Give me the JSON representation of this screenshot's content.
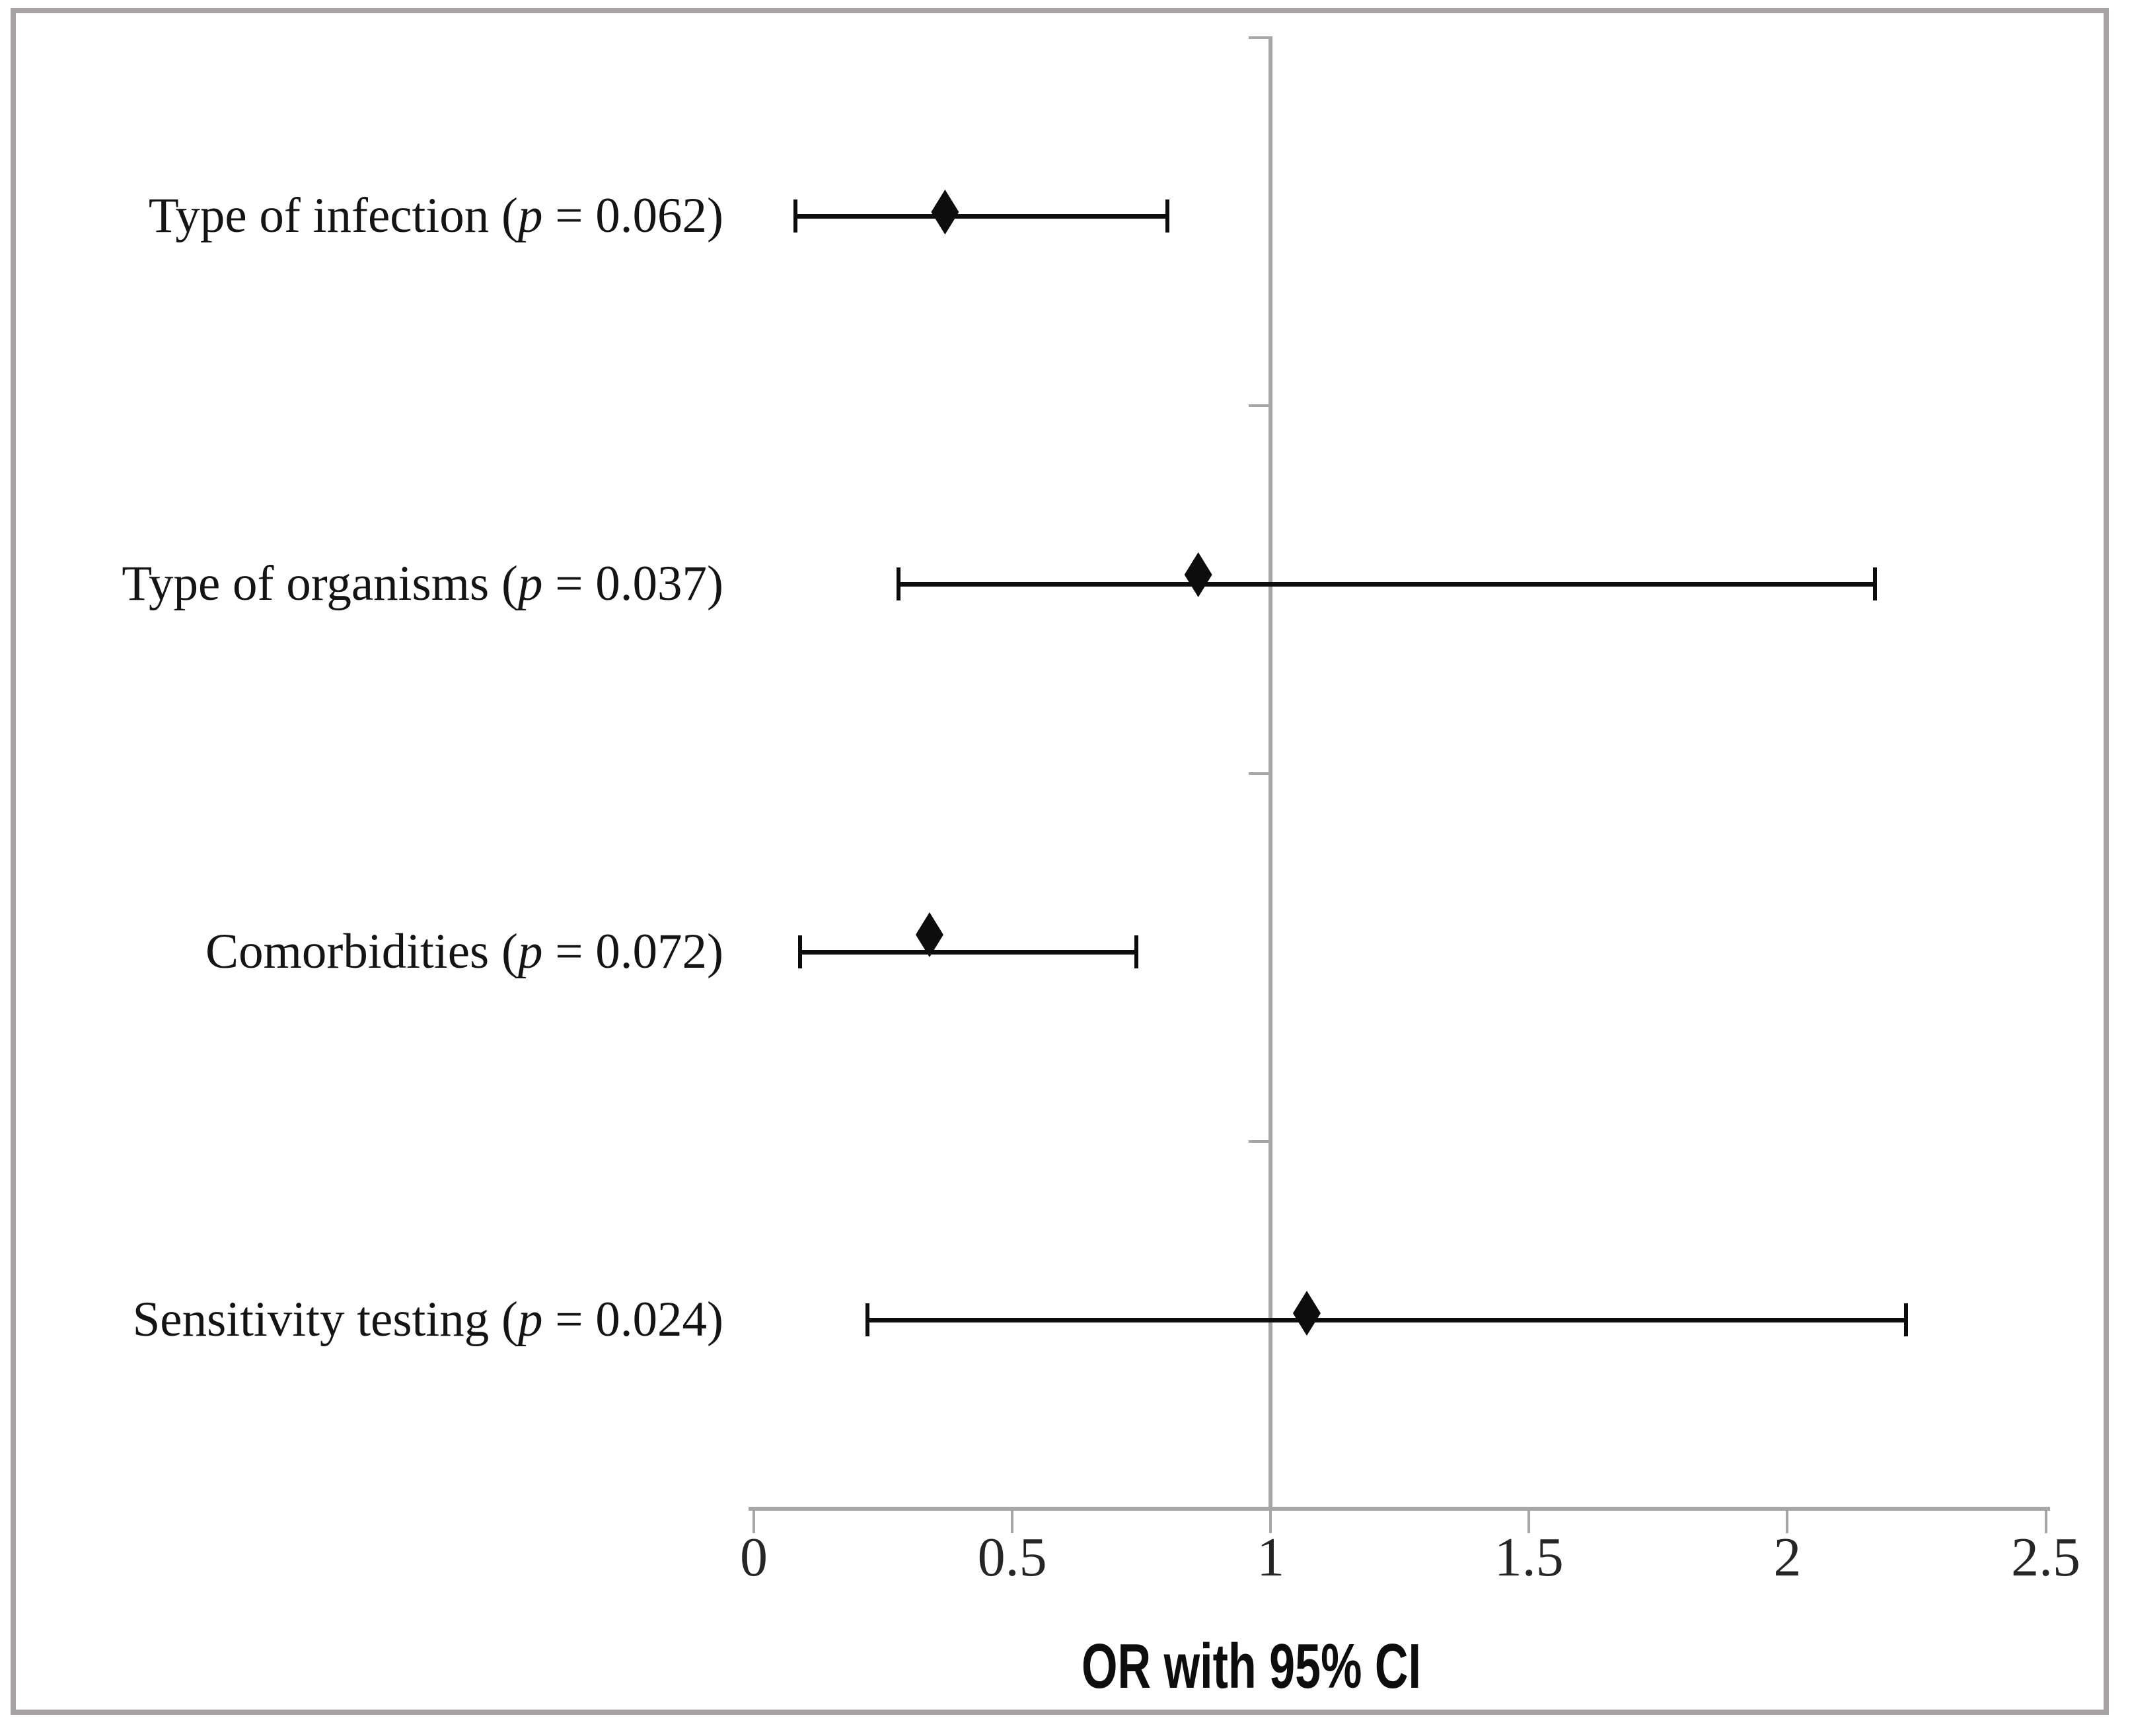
{
  "figure": {
    "axis_title": "OR with 95% CI"
  },
  "colors": {
    "axis_gray": "#a6a6a6",
    "frame_border": "#a8a2a2",
    "data_black": "#0d0d0d"
  },
  "chart_data": {
    "type": "scatter",
    "subtype": "forest-plot",
    "title": "",
    "xlabel": "OR with 95% CI",
    "ylabel": "",
    "xlim": [
      0,
      2.5
    ],
    "grid": "off",
    "reference_line_x": 1,
    "x_ticks": [
      {
        "value": 0,
        "label": "0"
      },
      {
        "value": 0.5,
        "label": "0.5"
      },
      {
        "value": 1,
        "label": "1"
      },
      {
        "value": 1.5,
        "label": "1.5"
      },
      {
        "value": 2,
        "label": "2"
      },
      {
        "value": 2.5,
        "label": "2.5"
      }
    ],
    "label_format": {
      "open": " (",
      "p_symbol": "p",
      "equals": " = ",
      "close": ")"
    },
    "rows": [
      {
        "label": "Type of infection",
        "p_value": "0.062",
        "or": 0.37,
        "ci_lower": 0.08,
        "ci_upper": 0.8
      },
      {
        "label": "Type of organisms",
        "p_value": "0.037",
        "or": 0.86,
        "ci_lower": 0.28,
        "ci_upper": 2.17
      },
      {
        "label": "Comorbidities",
        "p_value": "0.072",
        "or": 0.34,
        "ci_lower": 0.09,
        "ci_upper": 0.74
      },
      {
        "label": "Sensitivity testing",
        "p_value": "0.024",
        "or": 1.07,
        "ci_lower": 0.22,
        "ci_upper": 2.23
      }
    ]
  }
}
